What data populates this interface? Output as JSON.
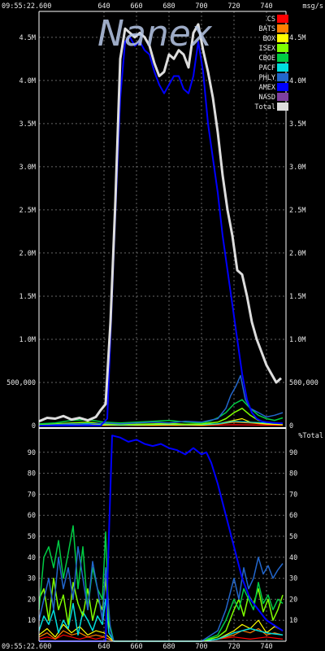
{
  "header": {
    "time_top": "09:55:22.600",
    "time_bottom": "09:55:22.600",
    "unit": "msg/s"
  },
  "logo_text": "Nanex",
  "colors": {
    "grid": "#666666",
    "background": "#000000",
    "axis": "#ffffff"
  },
  "chart_data": [
    {
      "type": "line",
      "panel": "top",
      "ylabel": "msg/s",
      "xlim": [
        600,
        752
      ],
      "ylim": [
        0,
        4800000
      ],
      "x_ticks": [
        640,
        660,
        680,
        700,
        720,
        740
      ],
      "y_ticks": [
        {
          "v": 0,
          "label": "0"
        },
        {
          "v": 500000,
          "label": "500,000"
        },
        {
          "v": 1000000,
          "label": "1.0M"
        },
        {
          "v": 1500000,
          "label": "1.5M"
        },
        {
          "v": 2000000,
          "label": "2.0M"
        },
        {
          "v": 2500000,
          "label": "2.5M"
        },
        {
          "v": 3000000,
          "label": "3.0M"
        },
        {
          "v": 3500000,
          "label": "3.5M"
        },
        {
          "v": 4000000,
          "label": "4.0M"
        },
        {
          "v": 4500000,
          "label": "4.5M"
        }
      ],
      "legend": [
        {
          "name": "CS",
          "color": "#ff0000"
        },
        {
          "name": "BATS",
          "color": "#ff7f00"
        },
        {
          "name": "BOX",
          "color": "#ffff00"
        },
        {
          "name": "ISEX",
          "color": "#7fff00"
        },
        {
          "name": "CBOE",
          "color": "#00cc44"
        },
        {
          "name": "PACF",
          "color": "#00dddd"
        },
        {
          "name": "PHLY",
          "color": "#2266cc"
        },
        {
          "name": "AMEX",
          "color": "#0000ff"
        },
        {
          "name": "NASD",
          "color": "#7f3f9f"
        },
        {
          "name": "Total",
          "color": "#dddddd"
        }
      ],
      "series": [
        {
          "name": "Total",
          "color": "#dddddd",
          "width": 3,
          "x": [
            600,
            605,
            610,
            615,
            620,
            625,
            630,
            635,
            638,
            641,
            644,
            647,
            650,
            653,
            656,
            659,
            662,
            665,
            668,
            671,
            674,
            677,
            680,
            683,
            686,
            689,
            692,
            695,
            698,
            701,
            704,
            707,
            710,
            713,
            716,
            719,
            722,
            725,
            728,
            731,
            734,
            737,
            740,
            743,
            746,
            749
          ],
          "y": [
            50000,
            90000,
            80000,
            110000,
            70000,
            90000,
            60000,
            100000,
            180000,
            250000,
            1200000,
            2600000,
            4250000,
            4600000,
            4550000,
            4500000,
            4550000,
            4500000,
            4400000,
            4200000,
            4050000,
            4100000,
            4300000,
            4250000,
            4350000,
            4300000,
            4150000,
            4550000,
            4650000,
            4350000,
            4100000,
            3800000,
            3400000,
            2900000,
            2500000,
            2200000,
            1800000,
            1750000,
            1500000,
            1200000,
            1000000,
            850000,
            700000,
            600000,
            500000,
            550000
          ]
        },
        {
          "name": "AMEX",
          "color": "#0000ff",
          "width": 2,
          "x": [
            600,
            638,
            642,
            646,
            650,
            653,
            656,
            659,
            662,
            665,
            668,
            671,
            674,
            677,
            680,
            683,
            686,
            689,
            692,
            695,
            698,
            701,
            704,
            707,
            710,
            713,
            716,
            719,
            722,
            725,
            728,
            731,
            734,
            737,
            740,
            745,
            750
          ],
          "y": [
            0,
            0,
            80000,
            2000000,
            3800000,
            4450000,
            4500000,
            4400000,
            4450000,
            4350000,
            4300000,
            4100000,
            3950000,
            3850000,
            3950000,
            4050000,
            4050000,
            3900000,
            3850000,
            4050000,
            4450000,
            4100000,
            3500000,
            3100000,
            2700000,
            2200000,
            1800000,
            1400000,
            1000000,
            600000,
            300000,
            150000,
            80000,
            50000,
            40000,
            30000,
            25000
          ]
        },
        {
          "name": "PHLY",
          "color": "#2266cc",
          "width": 1.5,
          "x": [
            600,
            610,
            620,
            630,
            640,
            650,
            660,
            670,
            680,
            690,
            700,
            705,
            710,
            715,
            718,
            721,
            724,
            727,
            730,
            735,
            740,
            745,
            750
          ],
          "y": [
            0,
            10000,
            20000,
            15000,
            30000,
            20000,
            30000,
            40000,
            30000,
            50000,
            40000,
            60000,
            80000,
            200000,
            350000,
            450000,
            580000,
            300000,
            200000,
            150000,
            100000,
            120000,
            150000
          ]
        },
        {
          "name": "CBOE",
          "color": "#00cc44",
          "width": 1.5,
          "x": [
            600,
            610,
            620,
            630,
            640,
            650,
            660,
            670,
            680,
            690,
            700,
            705,
            710,
            715,
            720,
            725,
            730,
            735,
            740,
            745,
            750
          ],
          "y": [
            20000,
            30000,
            60000,
            70000,
            40000,
            30000,
            40000,
            50000,
            60000,
            40000,
            30000,
            50000,
            90000,
            150000,
            250000,
            300000,
            200000,
            120000,
            80000,
            60000,
            90000
          ]
        },
        {
          "name": "ISEX",
          "color": "#7fff00",
          "width": 1.5,
          "x": [
            600,
            610,
            620,
            630,
            640,
            650,
            660,
            670,
            680,
            690,
            700,
            710,
            715,
            720,
            725,
            730,
            735,
            740,
            745,
            750
          ],
          "y": [
            10000,
            20000,
            30000,
            40000,
            20000,
            10000,
            15000,
            20000,
            25000,
            15000,
            20000,
            40000,
            80000,
            150000,
            200000,
            120000,
            60000,
            40000,
            30000,
            20000
          ]
        },
        {
          "name": "PACF",
          "color": "#00dddd",
          "width": 1.2,
          "x": [
            600,
            610,
            620,
            630,
            640,
            650,
            660,
            670,
            680,
            690,
            700,
            710,
            720,
            730,
            740,
            750
          ],
          "y": [
            10000,
            20000,
            15000,
            25000,
            15000,
            5000,
            10000,
            15000,
            20000,
            10000,
            15000,
            20000,
            50000,
            40000,
            30000,
            20000
          ]
        },
        {
          "name": "BOX",
          "color": "#ffff00",
          "width": 1.2,
          "x": [
            600,
            620,
            640,
            660,
            680,
            700,
            710,
            720,
            725,
            730,
            740,
            750
          ],
          "y": [
            5000,
            10000,
            8000,
            5000,
            10000,
            8000,
            20000,
            60000,
            80000,
            40000,
            20000,
            10000
          ]
        },
        {
          "name": "BATS",
          "color": "#ff7f00",
          "width": 1.2,
          "x": [
            600,
            620,
            640,
            660,
            680,
            700,
            710,
            720,
            730,
            740,
            750
          ],
          "y": [
            5000,
            8000,
            5000,
            5000,
            8000,
            5000,
            15000,
            40000,
            30000,
            15000,
            10000
          ]
        },
        {
          "name": "CS",
          "color": "#ff0000",
          "width": 1.2,
          "x": [
            600,
            620,
            640,
            660,
            680,
            700,
            720,
            740,
            750
          ],
          "y": [
            3000,
            5000,
            3000,
            2000,
            3000,
            2000,
            10000,
            5000,
            3000
          ]
        }
      ]
    },
    {
      "type": "line",
      "panel": "bottom",
      "ylabel": "%Total",
      "xlim": [
        600,
        752
      ],
      "ylim": [
        0,
        100
      ],
      "x_ticks": [
        640,
        660,
        680,
        700,
        720,
        740
      ],
      "y_ticks": [
        {
          "v": 10,
          "label": "10"
        },
        {
          "v": 20,
          "label": "20"
        },
        {
          "v": 30,
          "label": "30"
        },
        {
          "v": 40,
          "label": "40"
        },
        {
          "v": 50,
          "label": "50"
        },
        {
          "v": 60,
          "label": "60"
        },
        {
          "v": 70,
          "label": "70"
        },
        {
          "v": 80,
          "label": "80"
        },
        {
          "v": 90,
          "label": "90"
        }
      ],
      "series": [
        {
          "name": "AMEX",
          "color": "#0000ff",
          "width": 2,
          "x": [
            600,
            641,
            643,
            645,
            650,
            655,
            660,
            665,
            670,
            675,
            680,
            685,
            690,
            695,
            700,
            703,
            706,
            710,
            715,
            720,
            725,
            730,
            740,
            750
          ],
          "y": [
            0,
            0,
            50,
            98,
            97,
            95,
            96,
            94,
            93,
            94,
            92,
            91,
            89,
            92,
            89,
            90,
            85,
            75,
            60,
            45,
            30,
            20,
            10,
            5
          ]
        },
        {
          "name": "PHLY",
          "color": "#2266cc",
          "width": 1.5,
          "x": [
            600,
            603,
            606,
            609,
            612,
            615,
            618,
            621,
            624,
            627,
            630,
            633,
            636,
            639,
            641,
            644,
            646,
            700,
            710,
            715,
            720,
            723,
            726,
            729,
            732,
            735,
            738,
            741,
            744,
            747,
            750
          ],
          "y": [
            10,
            20,
            30,
            15,
            40,
            25,
            35,
            20,
            45,
            30,
            15,
            38,
            25,
            10,
            35,
            5,
            0,
            0,
            5,
            15,
            30,
            20,
            35,
            25,
            30,
            40,
            32,
            36,
            30,
            34,
            37
          ]
        },
        {
          "name": "CBOE",
          "color": "#00cc44",
          "width": 1.5,
          "x": [
            600,
            603,
            606,
            609,
            612,
            615,
            618,
            621,
            624,
            627,
            630,
            633,
            636,
            639,
            641,
            643,
            646,
            700,
            710,
            715,
            720,
            723,
            726,
            729,
            732,
            735,
            738,
            741,
            744,
            747,
            750
          ],
          "y": [
            15,
            40,
            45,
            35,
            48,
            30,
            42,
            55,
            25,
            45,
            15,
            35,
            25,
            20,
            52,
            10,
            0,
            0,
            3,
            10,
            20,
            15,
            25,
            20,
            15,
            28,
            18,
            22,
            15,
            20,
            18
          ]
        },
        {
          "name": "ISEX",
          "color": "#7fff00",
          "width": 1.5,
          "x": [
            600,
            603,
            606,
            609,
            612,
            615,
            618,
            621,
            624,
            627,
            630,
            633,
            636,
            639,
            641,
            643,
            646,
            700,
            710,
            715,
            720,
            723,
            726,
            729,
            732,
            735,
            738,
            741,
            744,
            747,
            750
          ],
          "y": [
            20,
            25,
            10,
            30,
            15,
            22,
            8,
            28,
            18,
            12,
            25,
            10,
            20,
            15,
            30,
            8,
            0,
            0,
            2,
            5,
            15,
            20,
            12,
            22,
            18,
            25,
            14,
            20,
            10,
            15,
            22
          ]
        },
        {
          "name": "PACF",
          "color": "#00dddd",
          "width": 1.5,
          "x": [
            600,
            603,
            606,
            609,
            612,
            615,
            618,
            621,
            624,
            627,
            630,
            633,
            636,
            639,
            641,
            643,
            646,
            700,
            710,
            720,
            730,
            740,
            750
          ],
          "y": [
            5,
            12,
            8,
            15,
            4,
            10,
            6,
            18,
            3,
            14,
            10,
            5,
            12,
            8,
            20,
            4,
            0,
            0,
            1,
            4,
            6,
            4,
            3
          ]
        },
        {
          "name": "BOX",
          "color": "#ffff00",
          "width": 1.2,
          "x": [
            600,
            605,
            610,
            615,
            620,
            625,
            630,
            635,
            640,
            643,
            646,
            700,
            710,
            720,
            725,
            730,
            735,
            740,
            745,
            750
          ],
          "y": [
            3,
            6,
            2,
            8,
            4,
            7,
            3,
            5,
            4,
            2,
            0,
            0,
            1,
            5,
            8,
            6,
            10,
            4,
            7,
            5
          ]
        },
        {
          "name": "BATS",
          "color": "#ff7f00",
          "width": 1.2,
          "x": [
            600,
            605,
            610,
            615,
            620,
            625,
            630,
            635,
            640,
            643,
            646,
            700,
            710,
            720,
            725,
            730,
            735,
            740,
            745,
            750
          ],
          "y": [
            2,
            4,
            1,
            5,
            3,
            4,
            2,
            3,
            2,
            1,
            0,
            0,
            1,
            3,
            5,
            4,
            6,
            3,
            4,
            3
          ]
        },
        {
          "name": "CS",
          "color": "#ff0000",
          "width": 1.2,
          "x": [
            600,
            605,
            610,
            615,
            620,
            625,
            630,
            635,
            640,
            643,
            646,
            700,
            720,
            730,
            740,
            750
          ],
          "y": [
            1,
            2,
            1,
            3,
            2,
            1,
            2,
            1,
            2,
            1,
            0,
            0,
            2,
            1,
            2,
            1
          ]
        }
      ]
    }
  ]
}
